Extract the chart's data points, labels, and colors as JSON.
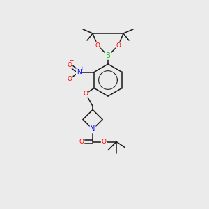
{
  "background_color": "#ebebeb",
  "atom_colors": {
    "C": "#000000",
    "O": "#ff0000",
    "N": "#0000ff",
    "B": "#00bb00"
  },
  "bond_color": "#1a1a1a",
  "figsize": [
    3.0,
    3.0
  ],
  "dpi": 100,
  "lw": 1.1
}
